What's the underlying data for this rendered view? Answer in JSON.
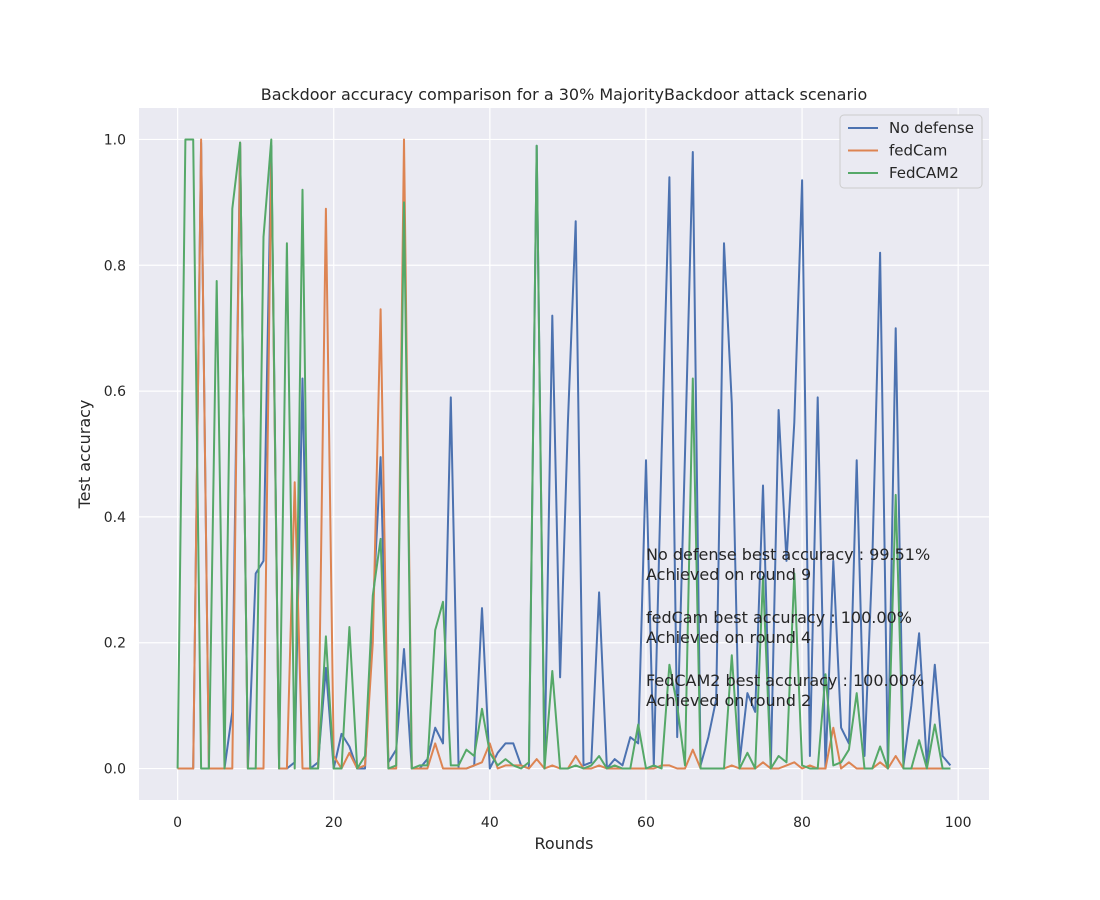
{
  "chart_data": {
    "type": "line",
    "title": "Backdoor accuracy comparison for a 30% MajorityBackdoor attack scenario",
    "xlabel": "Rounds",
    "ylabel": "Test accuracy",
    "xlim": [
      -4.95,
      103.95
    ],
    "ylim": [
      -0.05,
      1.05
    ],
    "xticks": [
      0,
      20,
      40,
      60,
      80,
      100
    ],
    "yticks": [
      0.0,
      0.2,
      0.4,
      0.6,
      0.8,
      1.0
    ],
    "xtick_labels": [
      "0",
      "20",
      "40",
      "60",
      "80",
      "100"
    ],
    "ytick_labels": [
      "0.0",
      "0.2",
      "0.4",
      "0.6",
      "0.8",
      "1.0"
    ],
    "grid": true,
    "legend_position": "top-right",
    "x": [
      0,
      1,
      2,
      3,
      4,
      5,
      6,
      7,
      8,
      9,
      10,
      11,
      12,
      13,
      14,
      15,
      16,
      17,
      18,
      19,
      20,
      21,
      22,
      23,
      24,
      25,
      26,
      27,
      28,
      29,
      30,
      31,
      32,
      33,
      34,
      35,
      36,
      37,
      38,
      39,
      40,
      41,
      42,
      43,
      44,
      45,
      46,
      47,
      48,
      49,
      50,
      51,
      52,
      53,
      54,
      55,
      56,
      57,
      58,
      59,
      60,
      61,
      62,
      63,
      64,
      65,
      66,
      67,
      68,
      69,
      70,
      71,
      72,
      73,
      74,
      75,
      76,
      77,
      78,
      79,
      80,
      81,
      82,
      83,
      84,
      85,
      86,
      87,
      88,
      89,
      90,
      91,
      92,
      93,
      94,
      95,
      96,
      97,
      98,
      99
    ],
    "series": [
      {
        "name": "No defense",
        "color": "#4c72b0",
        "values": [
          0,
          0,
          0,
          0.995,
          0,
          0,
          0,
          0.09,
          0.995,
          0,
          0.31,
          0.33,
          0.99,
          0,
          0,
          0.01,
          0.62,
          0,
          0.01,
          0.16,
          0,
          0.055,
          0.035,
          0,
          0,
          0.25,
          0.495,
          0.01,
          0.03,
          0.19,
          0,
          0,
          0.015,
          0.065,
          0.04,
          0.59,
          0,
          0,
          0.005,
          0.255,
          0,
          0.025,
          0.04,
          0.04,
          0.005,
          0,
          0.99,
          0,
          0.72,
          0.145,
          0.55,
          0.87,
          0.005,
          0.01,
          0.28,
          0,
          0.015,
          0.005,
          0.05,
          0.04,
          0.49,
          0.005,
          0.5,
          0.94,
          0.05,
          0.5,
          0.98,
          0.005,
          0.05,
          0.11,
          0.835,
          0.58,
          0.01,
          0.12,
          0.09,
          0.45,
          0,
          0.57,
          0.33,
          0.55,
          0.935,
          0.02,
          0.59,
          0,
          0.33,
          0.065,
          0.04,
          0.49,
          0.02,
          0.33,
          0.82,
          0,
          0.7,
          0.005,
          0.1,
          0.215,
          0.005,
          0.165,
          0.02,
          0.005
        ]
      },
      {
        "name": "fedCam",
        "color": "#dd8452",
        "values": [
          0,
          0,
          0,
          1.0,
          0,
          0,
          0,
          0,
          0.995,
          0,
          0,
          0,
          0.97,
          0,
          0,
          0.455,
          0,
          0,
          0,
          0.89,
          0.02,
          0,
          0.025,
          0,
          0.005,
          0.2,
          0.73,
          0,
          0,
          1.0,
          0,
          0,
          0,
          0.04,
          0,
          0,
          0,
          0,
          0.005,
          0.01,
          0.04,
          0,
          0.005,
          0.005,
          0.005,
          0,
          0.015,
          0,
          0.005,
          0,
          0,
          0.02,
          0,
          0,
          0.005,
          0,
          0,
          0,
          0,
          0,
          0,
          0,
          0.005,
          0.005,
          0,
          0,
          0.03,
          0,
          0,
          0,
          0,
          0.005,
          0,
          0,
          0,
          0.01,
          0,
          0,
          0.005,
          0.01,
          0,
          0.005,
          0,
          0,
          0.065,
          0,
          0.01,
          0,
          0,
          0,
          0.01,
          0,
          0.02,
          0,
          0,
          0,
          0,
          0,
          0,
          0
        ]
      },
      {
        "name": "FedCAM2",
        "color": "#55a868",
        "values": [
          0,
          1.0,
          1.0,
          0,
          0,
          0.775,
          0,
          0.89,
          0.995,
          0,
          0,
          0.845,
          1.0,
          0,
          0.835,
          0,
          0.92,
          0,
          0,
          0.21,
          0,
          0,
          0.225,
          0,
          0.02,
          0.275,
          0.365,
          0,
          0.005,
          0.9,
          0,
          0.005,
          0.005,
          0.22,
          0.265,
          0.005,
          0.005,
          0.03,
          0.02,
          0.095,
          0.025,
          0.005,
          0.015,
          0.005,
          0,
          0.01,
          0.99,
          0,
          0.155,
          0,
          0,
          0.005,
          0,
          0.005,
          0.02,
          0,
          0.005,
          0,
          0,
          0.07,
          0,
          0.005,
          0,
          0.165,
          0.1,
          0.005,
          0.62,
          0,
          0,
          0,
          0,
          0.18,
          0,
          0.025,
          0,
          0.305,
          0,
          0.02,
          0.01,
          0.31,
          0.005,
          0,
          0,
          0.15,
          0.005,
          0.01,
          0.03,
          0.12,
          0,
          0,
          0.035,
          0,
          0.435,
          0,
          0,
          0.045,
          0,
          0.07,
          0,
          0
        ]
      }
    ],
    "annotations": [
      {
        "line1": "No defense best accuracy : 99.51%",
        "line2": "Achieved on round 9"
      },
      {
        "line1": "fedCam best accuracy : 100.00%",
        "line2": "Achieved on round 4"
      },
      {
        "line1": "FedCAM2 best accuracy : 100.00%",
        "line2": "Achieved on round 2"
      }
    ],
    "style": {
      "plot_bg": "#eaeaf2",
      "grid_color": "#ffffff",
      "legend_bg": "#eaeaf2",
      "legend_border": "#cccccc"
    }
  }
}
